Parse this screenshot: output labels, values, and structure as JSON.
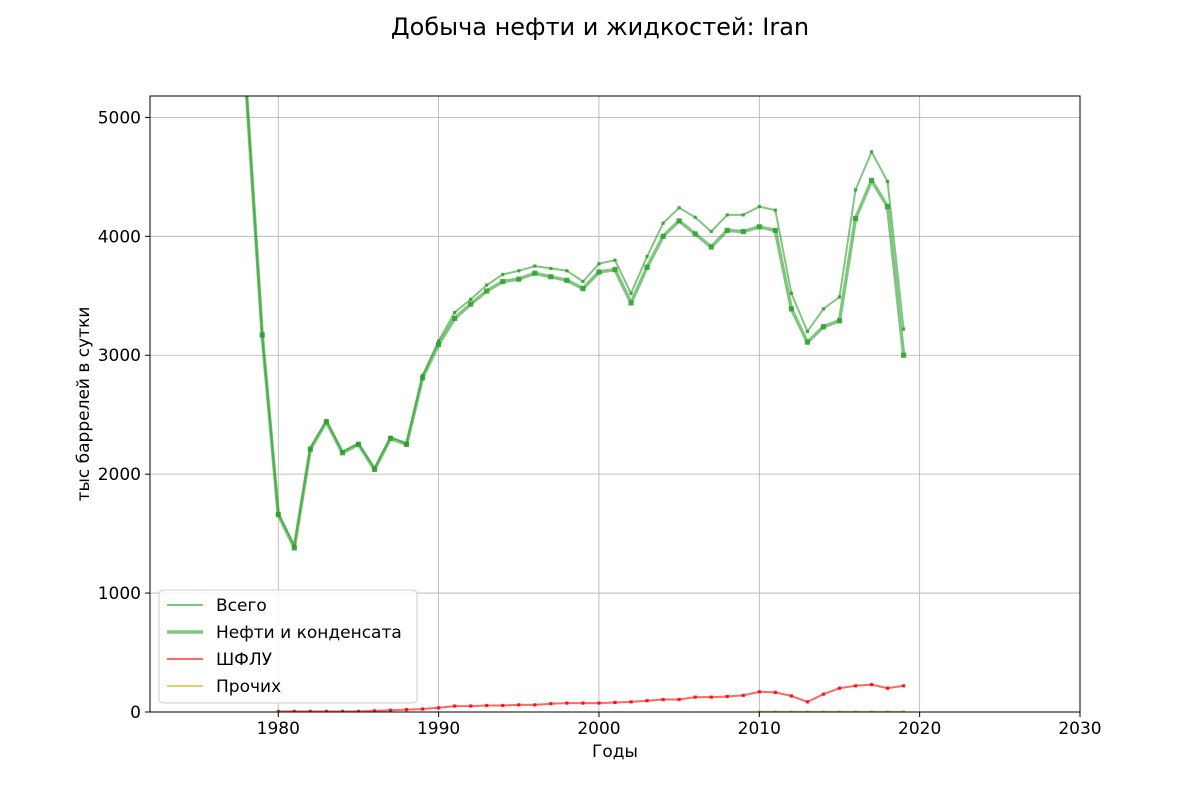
{
  "chart_data": {
    "type": "line",
    "title": "Добыча нефти и жидкостей: Iran",
    "xlabel": "Годы",
    "ylabel": "тыс баррелей в сутки",
    "xlim": [
      1972,
      2030
    ],
    "ylim": [
      0,
      5180
    ],
    "xticks": [
      1980,
      1990,
      2000,
      2010,
      2020,
      2030
    ],
    "yticks": [
      0,
      1000,
      2000,
      3000,
      4000,
      5000
    ],
    "grid": true,
    "legend_position": "lower-left",
    "x": [
      1978,
      1979,
      1980,
      1981,
      1982,
      1983,
      1984,
      1985,
      1986,
      1987,
      1988,
      1989,
      1990,
      1991,
      1992,
      1993,
      1994,
      1995,
      1996,
      1997,
      1998,
      1999,
      2000,
      2001,
      2002,
      2003,
      2004,
      2005,
      2006,
      2007,
      2008,
      2009,
      2010,
      2011,
      2012,
      2013,
      2014,
      2015,
      2016,
      2017,
      2018,
      2019
    ],
    "series": [
      {
        "name": "Всего",
        "color": "#2ca02c",
        "values": [
          5250,
          3170,
          1670,
          1400,
          2220,
          2450,
          2190,
          2260,
          2050,
          2310,
          2260,
          2830,
          3120,
          3360,
          3470,
          3590,
          3680,
          3710,
          3750,
          3730,
          3710,
          3620,
          3770,
          3800,
          3520,
          3830,
          4110,
          4240,
          4160,
          4040,
          4180,
          4180,
          4250,
          4220,
          3520,
          3200,
          3390,
          3490,
          4390,
          4710,
          4460,
          3220
        ]
      },
      {
        "name": "Нефти и конденсата",
        "color": "#2ca02c",
        "values": [
          5250,
          3170,
          1660,
          1380,
          2210,
          2440,
          2180,
          2250,
          2040,
          2300,
          2250,
          2810,
          3090,
          3310,
          3430,
          3540,
          3620,
          3640,
          3690,
          3660,
          3630,
          3560,
          3700,
          3720,
          3440,
          3740,
          4000,
          4130,
          4020,
          3910,
          4050,
          4040,
          4080,
          4050,
          3390,
          3110,
          3240,
          3290,
          4150,
          4470,
          4250,
          3000
        ]
      },
      {
        "name": "ШФЛУ",
        "color": "#ff0000",
        "values": [
          null,
          null,
          5,
          5,
          5,
          5,
          5,
          5,
          10,
          15,
          20,
          25,
          35,
          50,
          50,
          55,
          55,
          60,
          60,
          70,
          75,
          75,
          75,
          80,
          85,
          95,
          105,
          105,
          125,
          125,
          130,
          140,
          170,
          165,
          135,
          85,
          150,
          200,
          220,
          230,
          200,
          220
        ]
      },
      {
        "name": "Прочих",
        "color": "#d4b300",
        "values": [
          null,
          null,
          null,
          null,
          null,
          null,
          null,
          null,
          null,
          null,
          null,
          null,
          null,
          null,
          null,
          null,
          null,
          null,
          null,
          null,
          null,
          null,
          null,
          null,
          null,
          null,
          null,
          null,
          null,
          null,
          null,
          null,
          2,
          2,
          2,
          2,
          2,
          2,
          2,
          2,
          2,
          2
        ]
      }
    ]
  }
}
